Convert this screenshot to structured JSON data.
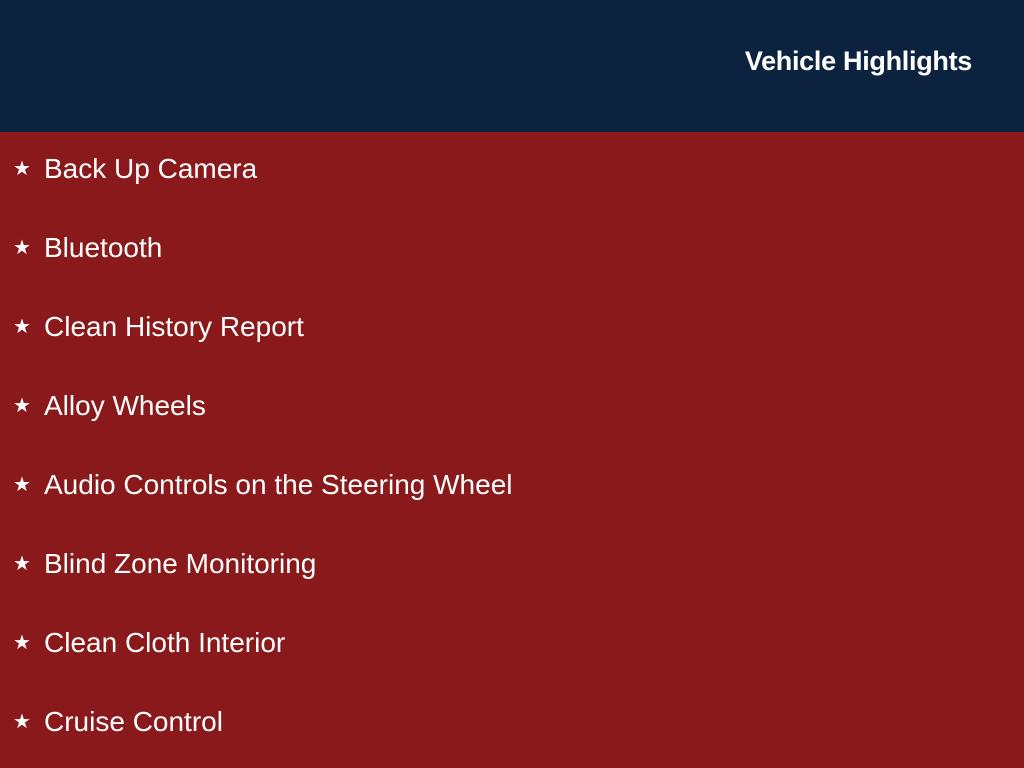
{
  "header": {
    "title": "Vehicle Highlights"
  },
  "icon": "star-icon",
  "colors": {
    "header_bg": "#0c2340",
    "body_bg": "#8a191c",
    "text": "#ffffff"
  },
  "highlights": [
    "Back Up Camera",
    "Bluetooth",
    "Clean History Report",
    "Alloy Wheels",
    "Audio Controls on the Steering Wheel",
    "Blind Zone Monitoring",
    "Clean Cloth Interior",
    "Cruise Control"
  ]
}
